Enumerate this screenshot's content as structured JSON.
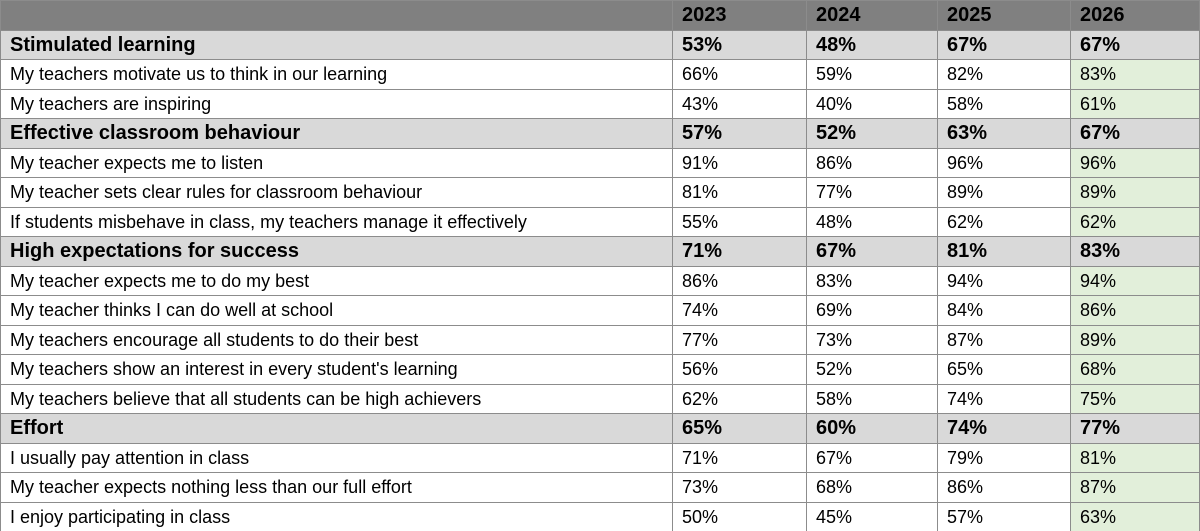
{
  "header": {
    "columns": [
      "2023",
      "2024",
      "2025",
      "2026"
    ]
  },
  "groups": [
    {
      "title": "Stimulated learning",
      "values": [
        "53%",
        "48%",
        "67%",
        "67%"
      ],
      "items": [
        {
          "label": "My teachers motivate us to think in our learning",
          "values": [
            "66%",
            "59%",
            "82%",
            "83%"
          ]
        },
        {
          "label": "My teachers are inspiring",
          "values": [
            "43%",
            "40%",
            "58%",
            "61%"
          ]
        }
      ]
    },
    {
      "title": "Effective classroom behaviour",
      "values": [
        "57%",
        "52%",
        "63%",
        "67%"
      ],
      "items": [
        {
          "label": "My teacher expects me to listen",
          "values": [
            "91%",
            "86%",
            "96%",
            "96%"
          ]
        },
        {
          "label": "My teacher sets clear rules for classroom behaviour",
          "values": [
            "81%",
            "77%",
            "89%",
            "89%"
          ]
        },
        {
          "label": "If students misbehave in class, my teachers manage it effectively",
          "values": [
            "55%",
            "48%",
            "62%",
            "62%"
          ]
        }
      ]
    },
    {
      "title": "High expectations for success",
      "values": [
        "71%",
        "67%",
        "81%",
        "83%"
      ],
      "items": [
        {
          "label": "My teacher expects me to do my best",
          "values": [
            "86%",
            "83%",
            "94%",
            "94%"
          ]
        },
        {
          "label": "My teacher thinks I can do well at school",
          "values": [
            "74%",
            "69%",
            "84%",
            "86%"
          ]
        },
        {
          "label": "My teachers encourage all students to do their best",
          "values": [
            "77%",
            "73%",
            "87%",
            "89%"
          ]
        },
        {
          "label": "My teachers show an interest in every student's learning",
          "values": [
            "56%",
            "52%",
            "65%",
            "68%"
          ]
        },
        {
          "label": "My teachers believe that all students can be high achievers",
          "values": [
            "62%",
            "58%",
            "74%",
            "75%"
          ]
        }
      ]
    },
    {
      "title": "Effort",
      "values": [
        "65%",
        "60%",
        "74%",
        "77%"
      ],
      "items": [
        {
          "label": "I usually pay attention in class",
          "values": [
            "71%",
            "67%",
            "79%",
            "81%"
          ]
        },
        {
          "label": "My teacher expects nothing less than our full effort",
          "values": [
            "73%",
            "68%",
            "86%",
            "87%"
          ]
        },
        {
          "label": "I enjoy participating in class",
          "values": [
            "50%",
            "45%",
            "57%",
            "63%"
          ]
        }
      ]
    }
  ]
}
